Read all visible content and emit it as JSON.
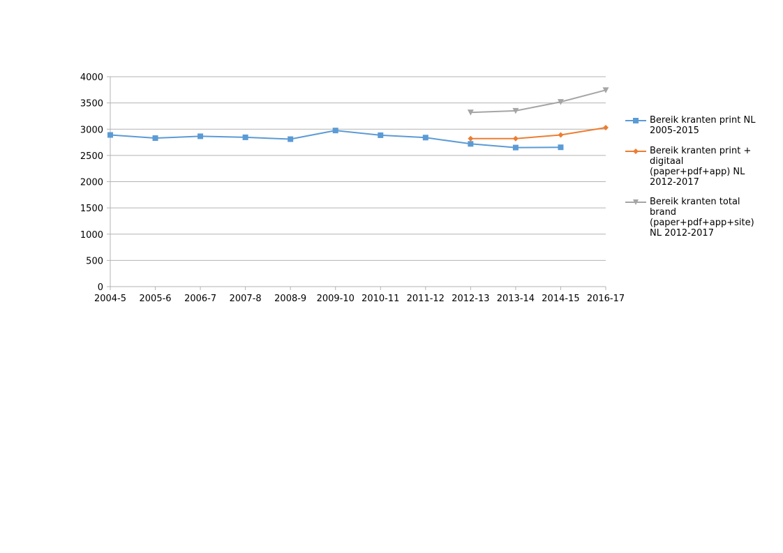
{
  "chart_data": {
    "type": "line",
    "categories": [
      "2004-5",
      "2005-6",
      "2006-7",
      "2007-8",
      "2008-9",
      "2009-10",
      "2010-11",
      "2011-12",
      "2012-13",
      "2013-14",
      "2014-15",
      "2016-17"
    ],
    "ylim": [
      0,
      4000
    ],
    "yticks": [
      0,
      500,
      1000,
      1500,
      2000,
      2500,
      3000,
      3500,
      4000
    ],
    "grid": true,
    "legend_position": "right",
    "series": [
      {
        "name": "Bereik kranten print NL 2005-2015",
        "color": "#5b9bd5",
        "marker": "square",
        "values": [
          2890,
          2830,
          2865,
          2845,
          2810,
          2975,
          2885,
          2840,
          2720,
          2650,
          2655,
          null
        ]
      },
      {
        "name": "Bereik kranten print + digitaal (paper+pdf+app) NL 2012-2017",
        "color": "#ed7d31",
        "marker": "diamond",
        "values": [
          null,
          null,
          null,
          null,
          null,
          null,
          null,
          null,
          2820,
          2820,
          2890,
          3030
        ]
      },
      {
        "name": "Bereik kranten total brand (paper+pdf+app+site) NL 2012-2017",
        "color": "#a5a5a5",
        "marker": "triangle-down",
        "values": [
          null,
          null,
          null,
          null,
          null,
          null,
          null,
          null,
          3320,
          3350,
          3520,
          3745
        ]
      }
    ]
  }
}
